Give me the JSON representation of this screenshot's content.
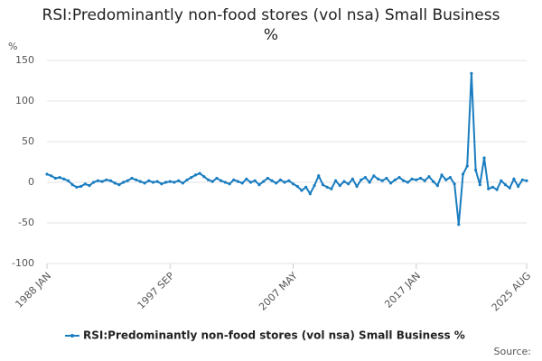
{
  "chart_data": {
    "type": "line",
    "title": "RSI:Predominantly non-food stores (vol nsa) Small Business %",
    "y_label": "%",
    "source": "Source:",
    "categories": [
      "1988 JAN",
      null,
      null,
      null,
      null,
      null,
      null,
      null,
      null,
      null,
      null,
      null,
      null,
      null,
      null,
      null,
      null,
      null,
      null,
      null,
      null,
      null,
      null,
      null,
      null,
      null,
      null,
      null,
      null,
      "1997 SEP",
      null,
      null,
      null,
      null,
      null,
      null,
      null,
      null,
      null,
      null,
      null,
      null,
      null,
      null,
      null,
      null,
      null,
      null,
      null,
      null,
      null,
      null,
      null,
      null,
      null,
      null,
      null,
      null,
      "2007 MAY",
      null,
      null,
      null,
      null,
      null,
      null,
      null,
      null,
      null,
      null,
      null,
      null,
      null,
      null,
      null,
      null,
      null,
      null,
      null,
      null,
      null,
      null,
      null,
      null,
      null,
      null,
      null,
      null,
      "2017 JAN",
      null,
      null,
      null,
      null,
      null,
      null,
      null,
      null,
      null,
      null,
      null,
      null,
      null,
      null,
      null,
      null,
      null,
      null,
      null,
      null,
      null,
      null,
      null,
      null,
      null,
      "2025 AUG"
    ],
    "series": [
      {
        "name": "RSI:Predominantly non-food stores (vol nsa) Small Business %",
        "color": "#1a7dc0",
        "values": [
          10,
          8,
          5,
          6,
          4,
          2,
          -3,
          -6,
          -5,
          -2,
          -4,
          0,
          2,
          1,
          3,
          2,
          -1,
          -3,
          0,
          2,
          5,
          3,
          1,
          -1,
          2,
          0,
          1,
          -2,
          0,
          1,
          0,
          2,
          -1,
          3,
          6,
          9,
          11,
          7,
          3,
          1,
          5,
          2,
          0,
          -2,
          3,
          1,
          -1,
          4,
          0,
          2,
          -3,
          1,
          5,
          2,
          -1,
          3,
          0,
          2,
          -2,
          -5,
          -10,
          -6,
          -14,
          -4,
          8,
          -3,
          -6,
          -8,
          2,
          -4,
          1,
          -2,
          4,
          -5,
          3,
          6,
          0,
          8,
          4,
          2,
          5,
          -1,
          3,
          6,
          2,
          0,
          4,
          3,
          5,
          2,
          7,
          1,
          -4,
          9,
          3,
          6,
          -2,
          -52,
          10,
          20,
          134,
          15,
          -3,
          30,
          -8,
          -6,
          -9,
          2,
          -3,
          -7,
          4,
          -5,
          3,
          2
        ]
      }
    ],
    "ylim": [
      -100,
      150
    ],
    "yticks": [
      -100,
      -50,
      0,
      50,
      100,
      150
    ],
    "grid": true
  }
}
